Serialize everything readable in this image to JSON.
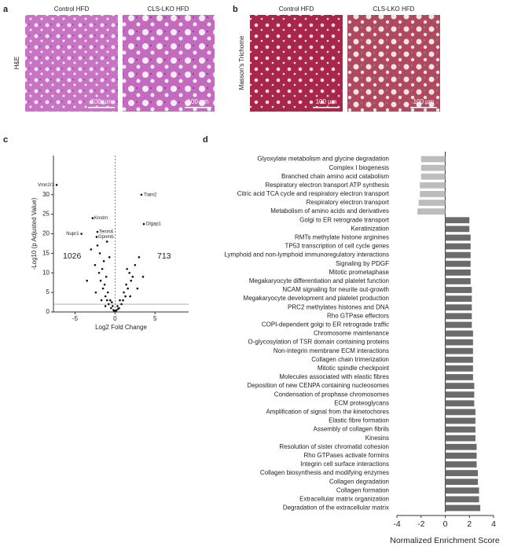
{
  "panels": [
    "a",
    "b",
    "c",
    "d"
  ],
  "histology": {
    "columns": [
      "Control HFD",
      "CLS-LKO HFD"
    ],
    "stains": [
      "H&E",
      "Masson's Trichome"
    ],
    "scale_bar": "100 µm"
  },
  "chart_data": [
    {
      "type": "scatter",
      "xlabel": "Log2 Fold Change",
      "ylabel": "-Log10 (p Adjusted Value)",
      "xlim": [
        -7.7,
        9.2
      ],
      "ylim": [
        0,
        40
      ],
      "xticks": [
        -5,
        0,
        5
      ],
      "yticks": [
        0,
        5,
        10,
        15,
        20,
        25,
        30
      ],
      "threshold": 2,
      "counts": {
        "down": 1026,
        "up": 713
      },
      "x": [
        -0.5,
        -0.8,
        -1,
        -1.2,
        -0.9,
        -1.5,
        -1.3,
        -1.8,
        -1.1,
        -2,
        -1.6,
        -2.5,
        -1.4,
        -0.7,
        -1.9,
        -2.2,
        -1,
        -3,
        -0.6,
        -0.3,
        -0.4,
        -1.7,
        -2.4,
        -3.5,
        -1.2,
        -0.2,
        -0.1,
        0.1,
        0.2,
        0.5,
        0.8,
        1,
        1.3,
        1.1,
        1.6,
        1.4,
        2,
        1.8,
        2.2,
        2.5,
        1.5,
        3,
        0.6,
        0.3,
        2.8,
        1.9,
        3.5,
        0.4
      ],
      "y": [
        1,
        2,
        3,
        4,
        5,
        6,
        7,
        8,
        9,
        10,
        11,
        12,
        13,
        14,
        15,
        17,
        18,
        16,
        3,
        1.5,
        2.5,
        3,
        5,
        8,
        1.5,
        0.5,
        0.3,
        0.3,
        0.5,
        1,
        2,
        3,
        4,
        5,
        6,
        7,
        8,
        10,
        9,
        12,
        11,
        14,
        3,
        1.5,
        6,
        4,
        9,
        0.8
      ],
      "genes": [
        {
          "name": "Vmn2r3",
          "x": -7.3,
          "y": 32.5
        },
        {
          "name": "Tiam2",
          "x": 3.3,
          "y": 30
        },
        {
          "name": "Knstrn",
          "x": -2.8,
          "y": 24
        },
        {
          "name": "Dlgap1",
          "x": 3.6,
          "y": 22.5
        },
        {
          "name": "Tenm4",
          "x": -2.2,
          "y": 20.5
        },
        {
          "name": "Nupr1",
          "x": -4.2,
          "y": 20
        },
        {
          "name": "Gpnmb",
          "x": -2.3,
          "y": 19.2
        }
      ]
    },
    {
      "type": "bar",
      "orientation": "horizontal",
      "xlabel": "Normalized Enrichment Score",
      "xlim": [
        -4,
        4
      ],
      "xticks": [
        -4,
        -2,
        0,
        2,
        4
      ],
      "color_negative": "#bdbdbd",
      "color_positive": "#6b6b6b",
      "categories": [
        "Glyoxylate metabolism and glycine degradation",
        "Complex I biogenesis",
        "Branched chain amino acid catabolism",
        "Respiratory electron transport ATP synthesis",
        "Citric acid TCA cycle and respiratory electron transport",
        "Respiratory electron transport",
        "Metabolism of amino acids and derivatives",
        "Golgi to ER retrograde transport",
        "Keratinization",
        "RMTs methylate histone arginines",
        "TP53 transcription of cell cycle genes",
        "Lymphoid and non-lymphoid immunoregulatory interactions",
        "Signaling by PDGF",
        "Mitotic prometaphase",
        "Megakaryocyte differentiation and platelet function",
        "NCAM signaling for neurite out-growth",
        "Megakaryocyte development and platelet production",
        "PRC2 methylates histones and DNA",
        "Rho GTPase effectors",
        "COPI-dependent golgi to ER retrograde traffic",
        "Chromosome maintenance",
        "O-glycosylation of TSR domain containing proteins",
        "Non-integrin membrane ECM interactions",
        "Collagen chain trimerization",
        "Mitotic spindle checkpoint",
        "Molecules associated with elastic fibres",
        "Deposition of new CENPA containing nucleosomes",
        "Condensation of prophase chromosomes",
        "ECM proteoglycans",
        "Amplification of signal from the kinetochores",
        "Elastic fibre formation",
        "Assembly of collagen fibrils",
        "Kinesins",
        "Resolution of sister chromatid cohesion",
        "Rho GTPases activate formins",
        "Integrin cell surface interactions",
        "Collagen biosynthesis and modifying enzymes",
        "Collagen degradation",
        "Collagen formation",
        "Extracellular matrix organization",
        "Degradation of the extracellular matrix"
      ],
      "values": [
        -2.0,
        -2.0,
        -2.0,
        -2.1,
        -2.1,
        -2.2,
        -2.3,
        2.0,
        2.0,
        2.1,
        2.1,
        2.1,
        2.1,
        2.1,
        2.1,
        2.2,
        2.2,
        2.2,
        2.2,
        2.2,
        2.3,
        2.3,
        2.3,
        2.3,
        2.3,
        2.3,
        2.4,
        2.4,
        2.4,
        2.5,
        2.5,
        2.5,
        2.5,
        2.6,
        2.6,
        2.6,
        2.7,
        2.7,
        2.8,
        2.8,
        2.9
      ]
    }
  ]
}
